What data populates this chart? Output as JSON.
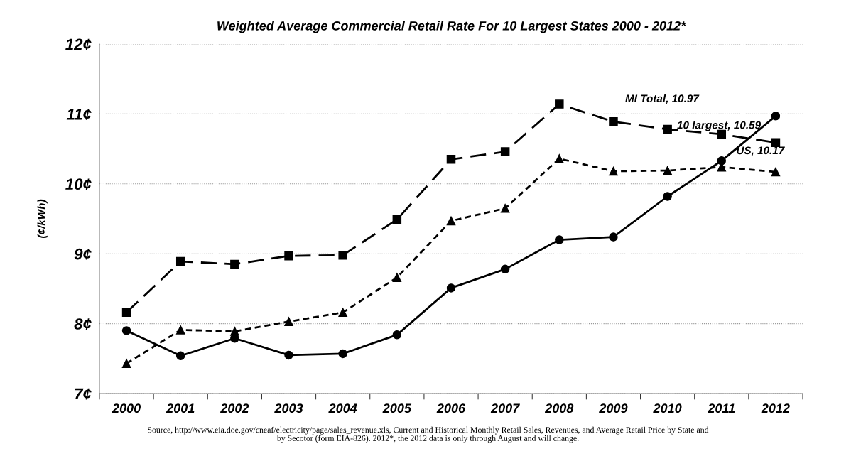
{
  "chart_data": {
    "type": "line",
    "title": "Weighted Average Commercial Retail Rate For 10 Largest States 2000 - 2012*",
    "ylabel": "(¢/kWh)",
    "categories": [
      "2000",
      "2001",
      "2002",
      "2003",
      "2004",
      "2005",
      "2006",
      "2007",
      "2008",
      "2009",
      "2010",
      "2011",
      "2012"
    ],
    "series": [
      {
        "color": "#000000",
        "marker": "square",
        "line_style": "dashed",
        "values": [
          8.16,
          8.89,
          8.85,
          8.97,
          8.98,
          9.49,
          10.35,
          10.46,
          11.14,
          10.89,
          10.78,
          10.71,
          10.59
        ]
      },
      {
        "color": "#000000",
        "marker": "triangle",
        "line_style": "dotted",
        "values": [
          7.43,
          7.91,
          7.89,
          8.03,
          8.16,
          8.66,
          9.47,
          9.65,
          10.36,
          10.18,
          10.19,
          10.24,
          10.17
        ]
      },
      {
        "color": "#000000",
        "marker": "circle",
        "line_style": "solid",
        "values": [
          7.9,
          7.54,
          7.79,
          7.55,
          7.57,
          7.84,
          8.51,
          8.78,
          9.2,
          9.24,
          9.82,
          10.33,
          10.97
        ]
      }
    ],
    "ylim": [
      7,
      12
    ],
    "yticks": [
      {
        "value": 7,
        "label": "7¢"
      },
      {
        "value": 8,
        "label": "8¢"
      },
      {
        "value": 9,
        "label": "9¢"
      },
      {
        "value": 10,
        "label": "10¢"
      },
      {
        "value": 11,
        "label": "11¢"
      },
      {
        "value": 12,
        "label": "12¢"
      }
    ],
    "grid": "y",
    "legend": false,
    "annotations": [
      "MI Total, 10.97",
      {
        "text": "10 largest, 10.59",
        "x": "2012",
        "y": 10.59
      },
      {
        "text": "US, 10.17",
        "x": "2012",
        "y": 10.17
      },
      "Source, http://www.eia.doe.gov/cneaf/electricity/page/sales_revenue.xls, Current and Historical Monthly Retail Sales, Revenues, and Average Retail Price by State and\nby Secotor (form EIA-826). 2012*, the 2012 data is only through August and will change."
    ]
  }
}
